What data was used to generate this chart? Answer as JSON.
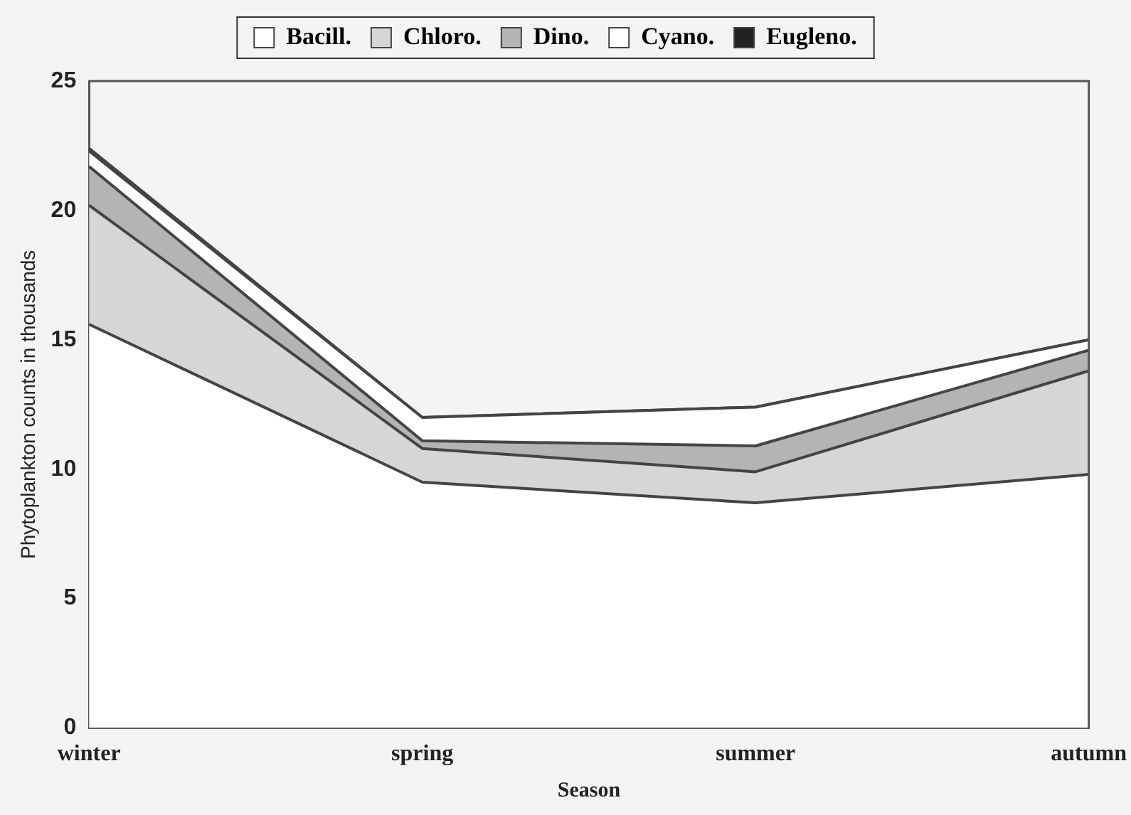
{
  "chart_data": {
    "type": "area",
    "stacked": true,
    "xlabel": "Season",
    "ylabel": "Phytoplankton counts in thousands",
    "categories": [
      "winter",
      "spring",
      "summer",
      "autumn"
    ],
    "series": [
      {
        "name": "Bacill.",
        "color": "#ffffff",
        "values": [
          15.6,
          9.5,
          8.7,
          9.8
        ]
      },
      {
        "name": "Chloro.",
        "color": "#d6d6d6",
        "values": [
          4.6,
          1.3,
          1.2,
          4.0
        ]
      },
      {
        "name": "Dino.",
        "color": "#b4b4b4",
        "values": [
          1.5,
          0.3,
          1.0,
          0.8
        ]
      },
      {
        "name": "Cyano.",
        "color": "#ffffff",
        "values": [
          0.6,
          0.9,
          1.5,
          0.4
        ]
      },
      {
        "name": "Eugleno.",
        "color": "#222222",
        "values": [
          0.1,
          0,
          0,
          0
        ]
      }
    ],
    "ylim": [
      0,
      25
    ],
    "yticks": [
      0,
      5,
      10,
      15,
      20,
      25
    ],
    "grid": false,
    "legend": "top"
  }
}
